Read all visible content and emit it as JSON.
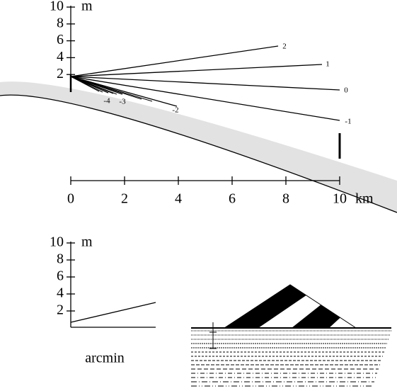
{
  "top_panel": {
    "y_axis": {
      "ticks": [
        2,
        4,
        6,
        8,
        10
      ],
      "unit": "m"
    },
    "x_axis": {
      "ticks": [
        0,
        2,
        4,
        6,
        8,
        10
      ],
      "unit": "km"
    },
    "rays": [
      {
        "label": "2"
      },
      {
        "label": "1"
      },
      {
        "label": "0"
      },
      {
        "label": "-1"
      },
      {
        "label": "-2"
      },
      {
        "label": "-3"
      },
      {
        "label": "-4"
      }
    ]
  },
  "bottom_panel": {
    "y_axis": {
      "ticks": [
        2,
        4,
        6,
        8,
        10
      ],
      "unit": "m"
    },
    "caption": "arcmin"
  }
}
